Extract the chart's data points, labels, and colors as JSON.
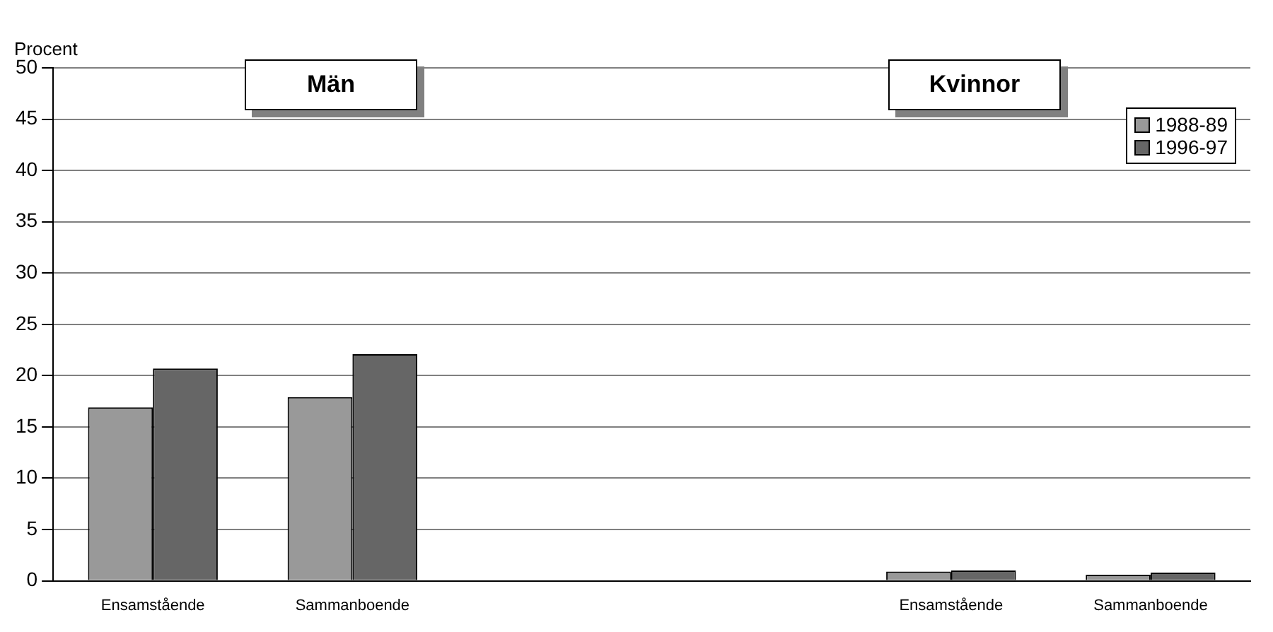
{
  "chart_data": {
    "type": "bar",
    "ylabel": "Procent",
    "categories": [
      "Ensamstående",
      "Sammanboende",
      null,
      null,
      "Ensamstående",
      "Sammanboende"
    ],
    "series": [
      {
        "name": "1988-89",
        "color": "#999999",
        "values": [
          16.9,
          17.9,
          null,
          null,
          0.9,
          0.6
        ]
      },
      {
        "name": "1996-97",
        "color": "#666666",
        "values": [
          20.7,
          22.1,
          null,
          null,
          1.0,
          0.8
        ]
      }
    ],
    "ylim": [
      0,
      50
    ],
    "yticks": [
      0,
      5,
      10,
      15,
      20,
      25,
      30,
      35,
      40,
      45,
      50
    ],
    "grid": "y",
    "legend": "top right",
    "annotations": [
      "Män",
      "Kvinnor"
    ]
  }
}
